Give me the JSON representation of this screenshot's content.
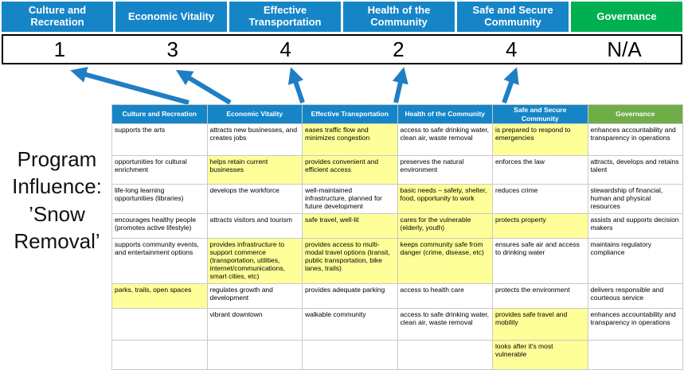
{
  "title": {
    "text": "Program\nInfluence:\n’Snow\nRemoval’"
  },
  "colors": {
    "pillar_blue": "#1685C8",
    "pillar_green": "#00B050",
    "matrix_green": "#70AD47",
    "highlight": "#FFFF99",
    "arrow": "#1F7EC4"
  },
  "scoreboard": {
    "items": [
      {
        "label": "Culture and Recreation",
        "score": "1",
        "color": "#1685C8"
      },
      {
        "label": "Economic Vitality",
        "score": "3",
        "color": "#1685C8"
      },
      {
        "label": "Effective Transportation",
        "score": "4",
        "color": "#1685C8"
      },
      {
        "label": "Health of the Community",
        "score": "2",
        "color": "#1685C8"
      },
      {
        "label": "Safe and Secure Community",
        "score": "4",
        "color": "#1685C8"
      },
      {
        "label": "Governance",
        "score": "N/A",
        "color": "#00B050"
      }
    ]
  },
  "arrows": {
    "color": "#1F7EC4",
    "count": 5
  },
  "matrix": {
    "highlight_color": "#FFFF99",
    "headers": [
      {
        "label": "Culture and Recreation",
        "color": "#1685C8"
      },
      {
        "label": "Economic Vitality",
        "color": "#1685C8"
      },
      {
        "label": "Effective Transportation",
        "color": "#1685C8"
      },
      {
        "label": "Health of the Community",
        "color": "#1685C8"
      },
      {
        "label": "Safe and Secure Community",
        "color": "#1685C8"
      },
      {
        "label": "Governance",
        "color": "#70AD47"
      }
    ],
    "rows": [
      [
        {
          "text": "supports the arts",
          "hl": false
        },
        {
          "text": "attracts new businesses, and creates jobs",
          "hl": false
        },
        {
          "text": "eases traffic flow and minimizes congestion",
          "hl": true
        },
        {
          "text": "access to safe drinking water, clean air, waste removal",
          "hl": false
        },
        {
          "text": "is prepared to respond to emergencies",
          "hl": true
        },
        {
          "text": "enhances accountability and transparency in operations",
          "hl": false
        }
      ],
      [
        {
          "text": "opportunities for cultural enrichment",
          "hl": false
        },
        {
          "text": "helps retain current businesses",
          "hl": true
        },
        {
          "text": "provides convenient and efficient access",
          "hl": true
        },
        {
          "text": "preserves the natural environment",
          "hl": false
        },
        {
          "text": "enforces the law",
          "hl": false
        },
        {
          "text": "attracts, develops and retains talent",
          "hl": false
        }
      ],
      [
        {
          "text": "life-long learning opportunities (libraries)",
          "hl": false
        },
        {
          "text": "develops the workforce",
          "hl": false
        },
        {
          "text": "well-maintained infrastructure, planned for future development",
          "hl": false
        },
        {
          "text": "basic needs – safety, shelter, food, opportunity to work",
          "hl": true
        },
        {
          "text": "reduces crime",
          "hl": false
        },
        {
          "text": "stewardship of financial, human and physical resources",
          "hl": false
        }
      ],
      [
        {
          "text": "encourages healthy people (promotes active lifestyle)",
          "hl": false
        },
        {
          "text": "attracts visitors and tourism",
          "hl": false
        },
        {
          "text": "safe travel, well-lit",
          "hl": true
        },
        {
          "text": "cares for the vulnerable (elderly, youth)",
          "hl": true
        },
        {
          "text": "protects property",
          "hl": true
        },
        {
          "text": "assists and supports decision makers",
          "hl": false
        }
      ],
      [
        {
          "text": "supports community events, and entertainment options",
          "hl": false
        },
        {
          "text": "provides infrastructure to support commerce (transportation, utilities, internet/communications, smart cities, etc)",
          "hl": true
        },
        {
          "text": "provides access to multi-modal travel options (transit, public transportation, bike lanes, trails)",
          "hl": true
        },
        {
          "text": "keeps community safe from danger (crime, disease, etc)",
          "hl": true
        },
        {
          "text": "ensures safe air and access to drinking water",
          "hl": false
        },
        {
          "text": "maintains regulatory compliance",
          "hl": false
        }
      ],
      [
        {
          "text": "parks, trails, open spaces",
          "hl": true
        },
        {
          "text": "regulates growth and development",
          "hl": false
        },
        {
          "text": "provides adequate parking",
          "hl": false
        },
        {
          "text": "access to health care",
          "hl": false
        },
        {
          "text": "protects the environment",
          "hl": false
        },
        {
          "text": "delivers responsible and courteous service",
          "hl": false
        }
      ],
      [
        {
          "text": "",
          "hl": false
        },
        {
          "text": "vibrant downtown",
          "hl": false
        },
        {
          "text": "walkable community",
          "hl": false
        },
        {
          "text": "access to safe drinking water, clean air, waste removal",
          "hl": false
        },
        {
          "text": "provides safe travel and mobility",
          "hl": true
        },
        {
          "text": "enhances accountability and transparency in operations",
          "hl": false
        }
      ],
      [
        {
          "text": "",
          "hl": false
        },
        {
          "text": "",
          "hl": false
        },
        {
          "text": "",
          "hl": false
        },
        {
          "text": "",
          "hl": false
        },
        {
          "text": "looks after it's most vulnerable",
          "hl": true
        },
        {
          "text": "",
          "hl": false
        }
      ]
    ]
  }
}
